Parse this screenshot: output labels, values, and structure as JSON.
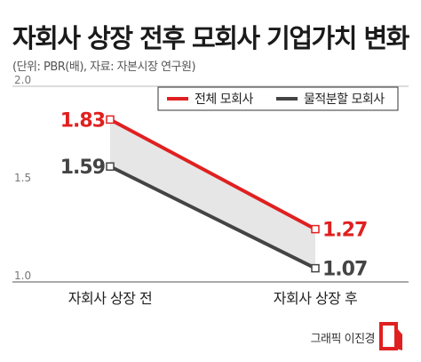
{
  "title": "자회사 상장 전후 모회사 기업가치 변화",
  "subtitle": "(단위: PBR(배), 자료: 자본시장 연구원)",
  "credit": "그래픽 이진경",
  "colors": {
    "series1": "#e02020",
    "series2": "#444444",
    "fill": "#e6e6e6",
    "axis": "#bbbbbb"
  },
  "chart_data": {
    "type": "line",
    "categories": [
      "자회사 상장 전",
      "자회사 상장 후"
    ],
    "ylim": [
      1.0,
      2.0
    ],
    "yticks": [
      "1.0",
      "1.5",
      "2.0"
    ],
    "ytick_values": [
      1.0,
      1.5,
      2.0
    ],
    "legend_position": "top-right",
    "grid": false,
    "series": [
      {
        "name": "전체 모회사",
        "values": [
          1.83,
          1.27
        ],
        "labels": [
          "1.83",
          "1.27"
        ]
      },
      {
        "name": "물적분할 모회사",
        "values": [
          1.59,
          1.07
        ],
        "labels": [
          "1.59",
          "1.07"
        ]
      }
    ]
  }
}
